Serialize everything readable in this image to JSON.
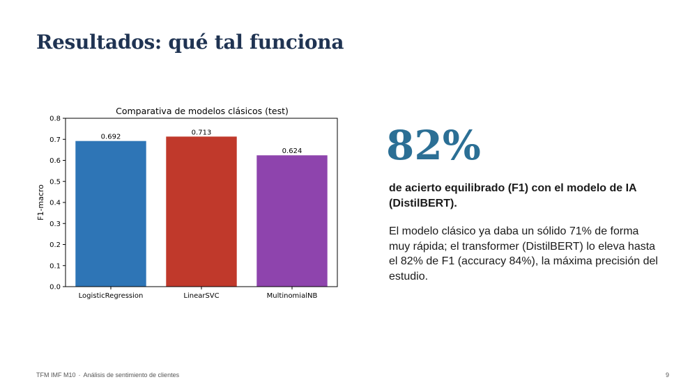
{
  "slide": {
    "title": "Resultados: qué tal funciona"
  },
  "chart_data": {
    "type": "bar",
    "title": "Comparativa de modelos clásicos (test)",
    "xlabel": "",
    "ylabel": "F1-macro",
    "categories": [
      "LogisticRegression",
      "LinearSVC",
      "MultinomialNB"
    ],
    "values": [
      0.692,
      0.713,
      0.624
    ],
    "value_labels": [
      "0.692",
      "0.713",
      "0.624"
    ],
    "bar_colors": [
      "#2e75b6",
      "#c0392b",
      "#8e44ad"
    ],
    "ylim": [
      0,
      0.8
    ],
    "yticks": [
      0.0,
      0.1,
      0.2,
      0.3,
      0.4,
      0.5,
      0.6,
      0.7,
      0.8
    ],
    "ytick_labels": [
      "0.0",
      "0.1",
      "0.2",
      "0.3",
      "0.4",
      "0.5",
      "0.6",
      "0.7",
      "0.8"
    ],
    "grid": false,
    "legend": "none"
  },
  "highlight": {
    "value": "82%",
    "caption": "de acierto equilibrado (F1) con el modelo de IA (DistilBERT).",
    "color": "#2b6f95"
  },
  "body": {
    "text": "El modelo clásico ya daba un sólido 71% de forma muy rápida; el transformer (DistilBERT) lo eleva hasta el 82% de F1 (accuracy 84%), la máxima precisión del estudio."
  },
  "footer": {
    "left": "TFM IMF M10",
    "separator": "·",
    "right": "Análisis de sentimiento de clientes",
    "page": "9"
  }
}
